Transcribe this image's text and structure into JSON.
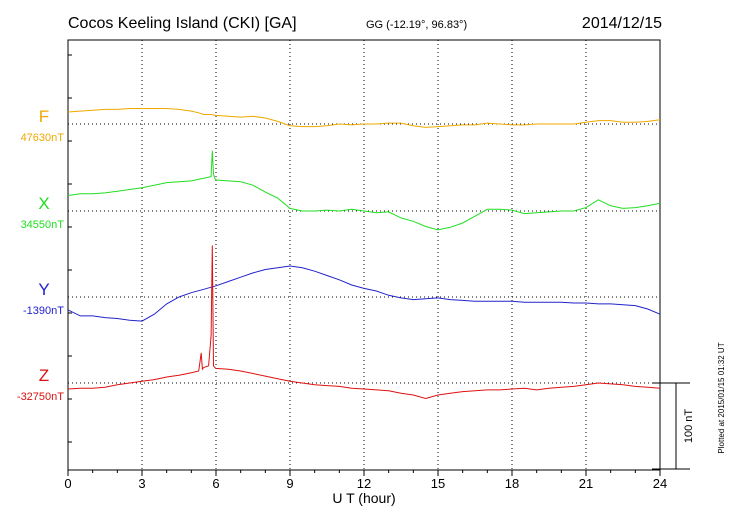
{
  "title": "Cocos Keeling Island (CKI)  [GA]",
  "coords": "GG (-12.19°,  96.83°)",
  "date": "2014/12/15",
  "plotted": "Plotted at 2015/01/15 01:32 UT",
  "chart_data": {
    "type": "line",
    "xlabel": "U T (hour)",
    "xlim": [
      0,
      24
    ],
    "x_ticks": [
      0,
      3,
      6,
      9,
      12,
      15,
      18,
      21,
      24
    ],
    "x_tick_labels": [
      "0",
      "3",
      "6",
      "9",
      "12",
      "15",
      "18",
      "21",
      "24"
    ],
    "scale_bar": {
      "label": "100 nT",
      "value_nT": 100
    },
    "grid": true,
    "series": [
      {
        "name": "F",
        "baseline_label": "47630nT",
        "baseline_nT": 47630,
        "color": "#f0a800",
        "x": [
          0,
          0.5,
          1,
          1.5,
          2,
          2.5,
          3,
          3.5,
          4,
          4.5,
          5,
          5.3,
          5.5,
          5.8,
          6,
          6.5,
          7,
          7.5,
          8,
          8.5,
          9,
          9.5,
          10,
          10.5,
          11,
          11.5,
          12,
          12.5,
          13,
          13.5,
          14,
          14.5,
          15,
          15.5,
          16,
          16.5,
          17,
          17.5,
          18,
          18.5,
          19,
          19.5,
          20,
          20.5,
          21,
          21.5,
          22,
          22.5,
          23,
          23.5,
          24
        ],
        "values": [
          14,
          15,
          16,
          17,
          17,
          18,
          18,
          18,
          18,
          17,
          15,
          13,
          11,
          11,
          10,
          9,
          8,
          9,
          7,
          3,
          -2,
          -3,
          -3,
          -2,
          0,
          -1,
          0,
          0,
          1,
          1,
          -2,
          -4,
          -3,
          -2,
          -1,
          -1,
          1,
          0,
          -1,
          -1,
          0,
          0,
          0,
          0,
          2,
          4,
          4,
          2,
          2,
          3,
          5
        ]
      },
      {
        "name": "X",
        "baseline_label": "34550nT",
        "baseline_nT": 34550,
        "color": "#22dd22",
        "x": [
          0,
          0.5,
          1,
          1.5,
          2,
          2.5,
          3,
          3.5,
          4,
          4.5,
          5,
          5.5,
          5.8,
          5.85,
          5.9,
          5.95,
          6,
          6.5,
          7,
          7.5,
          8,
          8.5,
          9,
          9.5,
          10,
          10.5,
          11,
          11.5,
          12,
          12.5,
          13,
          13.5,
          14,
          14.5,
          15,
          15.5,
          16,
          16.5,
          17,
          17.5,
          18,
          18.5,
          19,
          19.5,
          20,
          20.5,
          21,
          21.5,
          22,
          22.5,
          23,
          23.5,
          24
        ],
        "values": [
          18,
          20,
          20,
          21,
          23,
          25,
          27,
          30,
          33,
          34,
          35,
          38,
          40,
          70,
          43,
          38,
          36,
          35,
          34,
          30,
          22,
          15,
          3,
          0,
          0,
          1,
          0,
          2,
          0,
          -2,
          -1,
          -8,
          -12,
          -18,
          -22,
          -19,
          -14,
          -6,
          2,
          2,
          1,
          -3,
          -2,
          -1,
          0,
          0,
          4,
          13,
          6,
          3,
          4,
          6,
          9
        ]
      },
      {
        "name": "Y",
        "baseline_label": "-1390nT",
        "baseline_nT": -1390,
        "color": "#2222cc",
        "x": [
          0,
          0.5,
          1,
          1.5,
          2,
          2.5,
          3,
          3.5,
          4,
          4.5,
          5,
          5.5,
          6,
          6.5,
          7,
          7.5,
          8,
          8.5,
          9,
          9.5,
          10,
          10.5,
          11,
          11.5,
          12,
          12.5,
          13,
          13.5,
          14,
          14.5,
          15,
          15.5,
          16,
          16.5,
          17,
          17.5,
          18,
          18.5,
          19,
          19.5,
          20,
          20.5,
          21,
          21.5,
          22,
          22.5,
          23,
          23.5,
          24
        ],
        "values": [
          -15,
          -22,
          -22,
          -24,
          -25,
          -27,
          -28,
          -20,
          -8,
          0,
          5,
          9,
          13,
          18,
          23,
          28,
          32,
          34,
          36,
          34,
          30,
          25,
          20,
          14,
          10,
          7,
          2,
          -1,
          -3,
          -2,
          -1,
          -3,
          -4,
          -5,
          -5,
          -5,
          -5,
          -6,
          -6,
          -6,
          -6,
          -7,
          -7,
          -8,
          -8,
          -9,
          -10,
          -14,
          -20
        ]
      },
      {
        "name": "Z",
        "baseline_label": "-32750nT",
        "baseline_nT": -32750,
        "color": "#dd1111",
        "x": [
          0,
          0.5,
          1,
          1.5,
          2,
          2.5,
          3,
          3.5,
          4,
          4.5,
          5,
          5.3,
          5.4,
          5.45,
          5.5,
          5.7,
          5.8,
          5.85,
          5.9,
          5.95,
          6,
          6.5,
          7,
          7.5,
          8,
          8.5,
          9,
          9.5,
          10,
          10.5,
          11,
          11.5,
          12,
          12.5,
          13,
          13.5,
          14,
          14.5,
          15,
          15.5,
          16,
          16.5,
          17,
          17.5,
          18,
          18.5,
          19,
          19.5,
          20,
          20.5,
          21,
          21.5,
          22,
          22.5,
          23,
          23.5,
          24
        ],
        "values": [
          -7,
          -6,
          -6,
          -5,
          -2,
          0,
          2,
          4,
          7,
          9,
          12,
          14,
          35,
          16,
          18,
          20,
          55,
          160,
          20,
          18,
          17,
          16,
          14,
          11,
          8,
          5,
          2,
          0,
          -2,
          -3,
          -4,
          -6,
          -7,
          -8,
          -9,
          -12,
          -14,
          -18,
          -14,
          -12,
          -10,
          -9,
          -8,
          -8,
          -7,
          -6,
          -8,
          -6,
          -5,
          -4,
          -2,
          0,
          -1,
          -2,
          -4,
          -5,
          -6
        ]
      }
    ]
  }
}
